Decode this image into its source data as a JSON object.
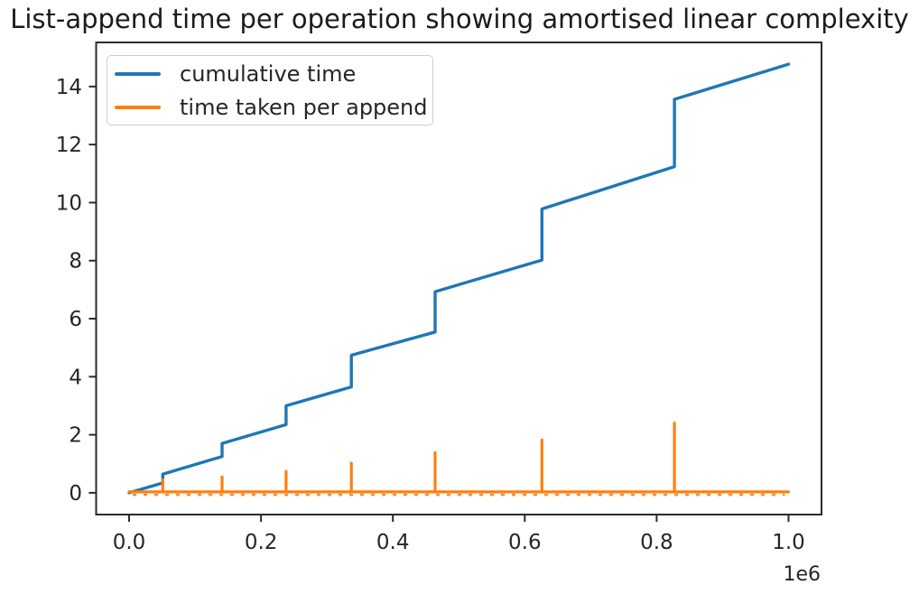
{
  "chart_data": {
    "type": "line",
    "title": "List-append time per operation showing amortised linear complexity",
    "xlabel": "",
    "ylabel": "",
    "grid": false,
    "background": "#ffffff",
    "axis_color": "#2b2b2b",
    "text_color": "#262626",
    "x_axis": {
      "lim": [
        -0.05,
        1.05
      ],
      "tick_values": [
        0.0,
        0.2,
        0.4,
        0.6,
        0.8,
        1.0
      ],
      "tick_labels": [
        "0.0",
        "0.2",
        "0.4",
        "0.6",
        "0.8",
        "1.0"
      ],
      "offset_label": "1e6",
      "unit_multiplier": 1000000
    },
    "y_axis": {
      "lim": [
        -0.75,
        15.52
      ],
      "tick_values": [
        0,
        2,
        4,
        6,
        8,
        10,
        12,
        14
      ],
      "tick_labels": [
        "0",
        "2",
        "4",
        "6",
        "8",
        "10",
        "12",
        "14"
      ]
    },
    "legend": {
      "position": "upper-left",
      "entries": [
        "cumulative time",
        "time taken per append"
      ]
    },
    "series": [
      {
        "name": "cumulative time",
        "color": "#1f77b4",
        "style": "step-line",
        "points": [
          [
            0.0,
            0.0
          ],
          [
            0.051,
            0.34
          ],
          [
            0.051,
            0.64
          ],
          [
            0.141,
            1.25
          ],
          [
            0.141,
            1.7
          ],
          [
            0.238,
            2.35
          ],
          [
            0.238,
            3.0
          ],
          [
            0.337,
            3.65
          ],
          [
            0.337,
            4.74
          ],
          [
            0.464,
            5.54
          ],
          [
            0.464,
            6.93
          ],
          [
            0.626,
            8.02
          ],
          [
            0.626,
            9.78
          ],
          [
            0.827,
            11.24
          ],
          [
            0.827,
            13.56
          ],
          [
            1.0,
            14.77
          ]
        ]
      },
      {
        "name": "time taken per append",
        "color": "#ff7f0e",
        "style": "spikes",
        "baseline_y": 0.03,
        "x_range": [
          0.0,
          1.0
        ],
        "spikes": [
          [
            0.051,
            0.45
          ],
          [
            0.141,
            0.55
          ],
          [
            0.238,
            0.74
          ],
          [
            0.337,
            1.02
          ],
          [
            0.464,
            1.38
          ],
          [
            0.626,
            1.82
          ],
          [
            0.827,
            2.4
          ]
        ]
      }
    ]
  }
}
